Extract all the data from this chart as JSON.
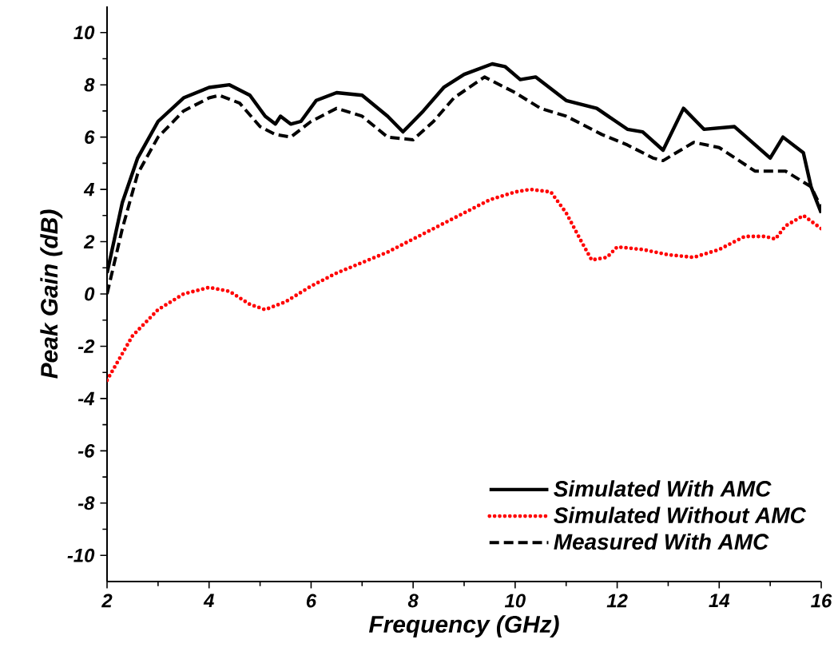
{
  "chart_data": {
    "type": "line",
    "xlabel": "Frequency (GHz)",
    "ylabel": "Peak Gain (dB)",
    "xlim": [
      2,
      16
    ],
    "ylim": [
      -11,
      11
    ],
    "xticks": [
      2,
      4,
      6,
      8,
      10,
      12,
      14,
      16
    ],
    "yticks": [
      -10,
      -8,
      -6,
      -4,
      -2,
      0,
      2,
      4,
      6,
      8,
      10
    ],
    "legend": "bottom right",
    "grid": false,
    "marker": "none",
    "series": [
      {
        "name": "Simulated With AMC",
        "color": "#000000",
        "line_style": "solid",
        "x": [
          2,
          2.3,
          2.6,
          3,
          3.5,
          4,
          4.4,
          4.8,
          5.1,
          5.3,
          5.4,
          5.6,
          5.8,
          6.1,
          6.5,
          7,
          7.5,
          7.8,
          8.2,
          8.6,
          9,
          9.55,
          9.8,
          10.1,
          10.4,
          11,
          11.6,
          12.2,
          12.5,
          12.9,
          13.3,
          13.7,
          14.3,
          15,
          15.25,
          15.65,
          15.8,
          16
        ],
        "values": [
          0.8,
          3.5,
          5.2,
          6.6,
          7.5,
          7.9,
          8.0,
          7.6,
          6.8,
          6.5,
          6.8,
          6.5,
          6.6,
          7.4,
          7.7,
          7.6,
          6.8,
          6.2,
          7.0,
          7.9,
          8.4,
          8.8,
          8.7,
          8.2,
          8.3,
          7.4,
          7.1,
          6.3,
          6.2,
          5.5,
          7.1,
          6.3,
          6.4,
          5.2,
          6.0,
          5.4,
          4.1,
          3.1
        ]
      },
      {
        "name": "Simulated Without AMC",
        "color": "#ff0000",
        "line_style": "dotted",
        "x": [
          2,
          2.5,
          3,
          3.5,
          4,
          4.4,
          4.8,
          5.1,
          5.5,
          6,
          6.5,
          7,
          7.5,
          8,
          8.5,
          9,
          9.5,
          10,
          10.3,
          10.7,
          11,
          11.3,
          11.5,
          11.8,
          12,
          12.5,
          13,
          13.5,
          14,
          14.5,
          14.9,
          15.1,
          15.3,
          15.65,
          16
        ],
        "values": [
          -3.3,
          -1.6,
          -0.6,
          0.0,
          0.25,
          0.1,
          -0.4,
          -0.6,
          -0.3,
          0.3,
          0.8,
          1.2,
          1.6,
          2.1,
          2.6,
          3.1,
          3.6,
          3.9,
          4.0,
          3.9,
          3.1,
          2.0,
          1.3,
          1.4,
          1.8,
          1.7,
          1.5,
          1.4,
          1.7,
          2.2,
          2.2,
          2.1,
          2.6,
          3.0,
          2.5
        ]
      },
      {
        "name": "Measured With AMC",
        "color": "#000000",
        "line_style": "dashed",
        "x": [
          2,
          2.3,
          2.6,
          3,
          3.5,
          4,
          4.2,
          4.6,
          5,
          5.3,
          5.6,
          6,
          6.5,
          7,
          7.5,
          8,
          8.4,
          8.8,
          9.4,
          10,
          10.5,
          11,
          11.7,
          12.2,
          12.7,
          12.9,
          13.5,
          14,
          14.7,
          15.3,
          15.8,
          16
        ],
        "values": [
          0,
          2.5,
          4.6,
          6.0,
          7.0,
          7.5,
          7.6,
          7.3,
          6.4,
          6.1,
          6.0,
          6.6,
          7.1,
          6.8,
          6.0,
          5.9,
          6.6,
          7.5,
          8.3,
          7.7,
          7.1,
          6.8,
          6.1,
          5.7,
          5.2,
          5.1,
          5.8,
          5.6,
          4.7,
          4.7,
          4.1,
          3.3
        ]
      }
    ]
  }
}
